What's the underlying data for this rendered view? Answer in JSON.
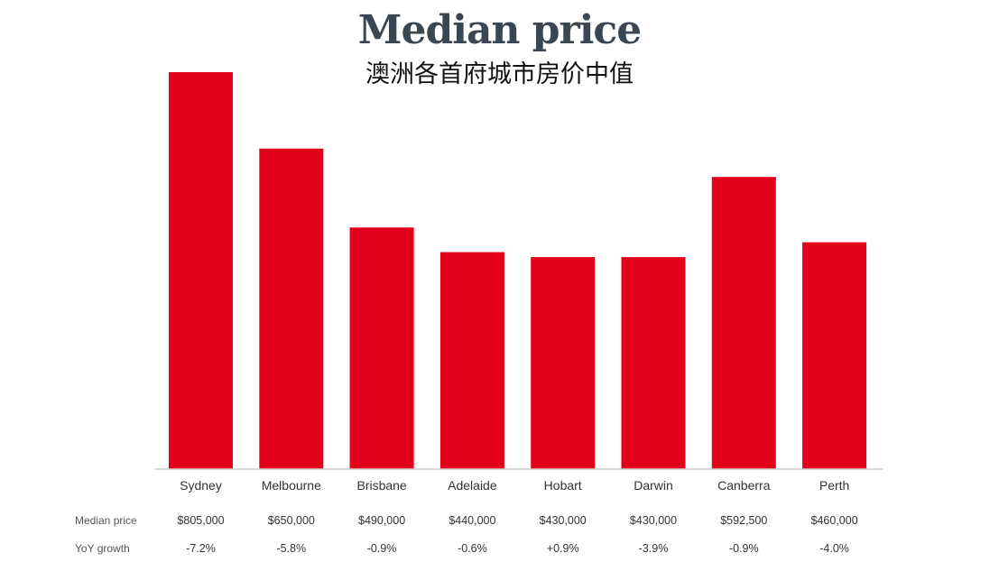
{
  "chart_data": {
    "type": "bar",
    "title": "Median price",
    "subtitle": "澳洲各首府城市房价中值",
    "categories": [
      "Sydney",
      "Melbourne",
      "Brisbane",
      "Adelaide",
      "Hobart",
      "Darwin",
      "Canberra",
      "Perth"
    ],
    "values": [
      805000,
      650000,
      490000,
      440000,
      430000,
      430000,
      592500,
      460000
    ],
    "ylim": [
      0,
      805000
    ],
    "grid": false,
    "bar_color": "#e2001a",
    "table_rows": [
      {
        "label": "Median price",
        "values": [
          "$805,000",
          "$650,000",
          "$490,000",
          "$440,000",
          "$430,000",
          "$430,000",
          "$592,500",
          "$460,000"
        ]
      },
      {
        "label": "YoY growth",
        "values": [
          "-7.2%",
          "-5.8%",
          "-0.9%",
          "-0.6%",
          "+0.9%",
          "-3.9%",
          "-0.9%",
          "-4.0%"
        ]
      }
    ]
  }
}
